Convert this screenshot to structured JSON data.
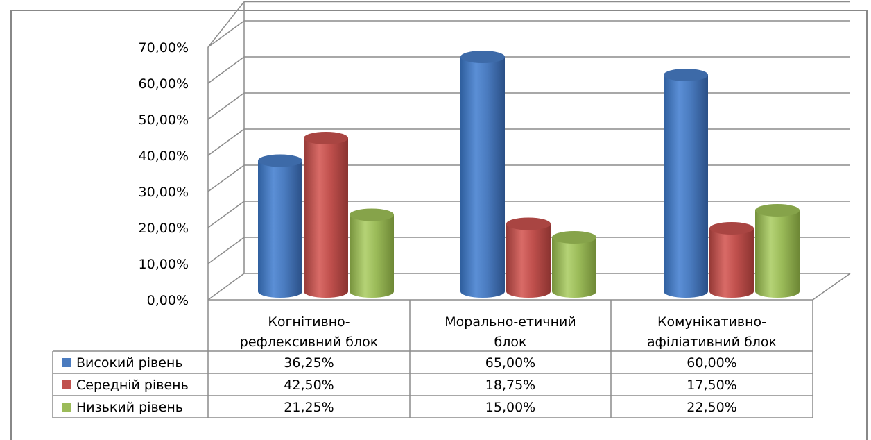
{
  "chart_data": {
    "type": "bar",
    "style": "3d-cylinder",
    "categories": [
      [
        "Когнітивно-",
        "рефлексивний блок"
      ],
      [
        "Морально-етичний",
        "блок"
      ],
      [
        "Комунікативно-",
        "афіліативний блок"
      ]
    ],
    "series": [
      {
        "name": "Високий рівень",
        "color": "#4a7bbf",
        "values": [
          36.25,
          65.0,
          60.0
        ],
        "labels": [
          "36,25%",
          "65,00%",
          "60,00%"
        ]
      },
      {
        "name": "Середній рівень",
        "color": "#c0504d",
        "values": [
          42.5,
          18.75,
          17.5
        ],
        "labels": [
          "42,50%",
          "18,75%",
          "17,50%"
        ]
      },
      {
        "name": "Низький рівень",
        "color": "#9bbb59",
        "values": [
          21.25,
          15.0,
          22.5
        ],
        "labels": [
          "21,25%",
          "15,00%",
          "22,50%"
        ]
      }
    ],
    "y_ticks": [
      "0,00%",
      "10,00%",
      "20,00%",
      "30,00%",
      "40,00%",
      "50,00%",
      "60,00%",
      "70,00%"
    ],
    "ylim": [
      0,
      70
    ],
    "grid": true,
    "data_table": true
  }
}
